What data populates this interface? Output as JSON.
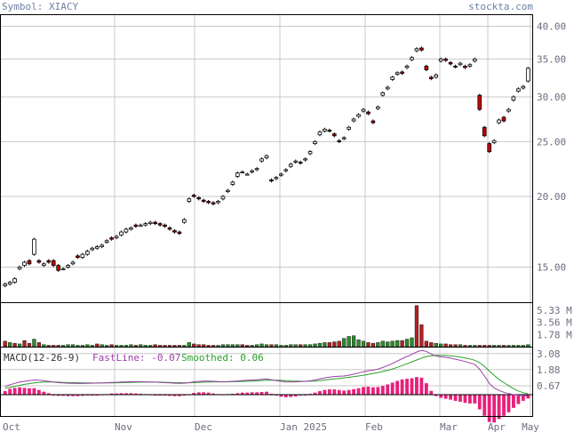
{
  "header": {
    "symbol_text": "Symbol: XIACY",
    "source_text": "stockta.com"
  },
  "colors": {
    "up_candle": "#ffffff",
    "down_candle": "#cc0000",
    "volume_up": "#2e8b2e",
    "volume_down": "#b22222",
    "fastline": "#9b3fa6",
    "smoothed": "#2aa12a",
    "histogram": "#e8207a",
    "grid": "#c8c8c8",
    "axis_text": "#6d6d80"
  },
  "chart_data": [
    {
      "type": "candlestick",
      "title": "Symbol: XIACY",
      "ylim": [
        13,
        42
      ],
      "y_ticks": [
        "40.00",
        "35.00",
        "30.00",
        "25.00",
        "20.00",
        "15.00"
      ],
      "y_scale": "log",
      "x_ticks": [
        "Oct",
        "Nov",
        "Dec",
        "Jan 2025",
        "Feb",
        "Mar",
        "Apr",
        "May"
      ],
      "grid": true,
      "series": [
        {
          "closes": [
            14.0,
            14.1,
            14.3,
            15.0,
            15.3,
            15.2,
            16.8,
            15.3,
            15.2,
            15.3,
            15.1,
            14.8,
            14.9,
            15.1,
            15.3,
            15.6,
            15.8,
            16.0,
            16.2,
            16.3,
            16.4,
            16.7,
            16.8,
            17.0,
            17.3,
            17.5,
            17.6,
            17.7,
            17.8,
            17.9,
            18.0,
            17.9,
            17.8,
            17.7,
            17.5,
            17.3,
            17.2,
            18.2,
            19.8,
            20.0,
            19.8,
            19.6,
            19.5,
            19.4,
            19.6,
            20.0,
            20.5,
            21.2,
            22.0,
            22.1,
            21.9,
            22.2,
            22.4,
            23.3,
            23.6,
            21.3,
            21.6,
            21.9,
            22.3,
            22.8,
            23.1,
            22.9,
            23.3,
            24.0,
            25.0,
            26.0,
            26.3,
            26.1,
            25.6,
            25.0,
            25.4,
            26.5,
            27.4,
            27.9,
            28.5,
            28.0,
            27.0,
            28.8,
            30.5,
            31.2,
            32.5,
            33.1,
            33.0,
            34.0,
            35.2,
            36.5,
            36.3,
            33.5,
            32.3,
            32.8,
            35.0,
            34.8,
            34.3,
            33.9,
            34.4,
            33.8,
            34.2,
            35.0,
            28.5,
            25.6,
            24.0,
            25.1,
            27.3,
            27.2,
            28.5,
            30.0,
            31.0,
            31.3,
            33.7
          ],
          "opens": [
            13.9,
            14.0,
            14.1,
            14.9,
            15.1,
            15.4,
            15.8,
            15.4,
            15.1,
            15.4,
            15.4,
            15.1,
            14.9,
            15.0,
            15.2,
            15.7,
            15.6,
            15.8,
            16.1,
            16.2,
            16.3,
            16.6,
            16.9,
            16.9,
            17.1,
            17.3,
            17.5,
            17.8,
            17.8,
            17.8,
            17.9,
            18.0,
            17.9,
            17.8,
            17.6,
            17.4,
            17.3,
            18.0,
            19.6,
            20.1,
            19.9,
            19.7,
            19.6,
            19.5,
            19.5,
            19.8,
            20.4,
            21.0,
            21.7,
            22.1,
            21.9,
            22.1,
            22.3,
            23.1,
            23.4,
            21.4,
            21.5,
            21.8,
            22.2,
            22.6,
            23.0,
            23.0,
            23.2,
            23.8,
            24.8,
            25.7,
            26.1,
            26.2,
            25.8,
            25.1,
            25.3,
            26.3,
            27.2,
            27.7,
            28.3,
            28.2,
            27.2,
            28.6,
            30.2,
            31.0,
            32.2,
            32.9,
            33.2,
            33.8,
            34.9,
            36.2,
            36.6,
            34.0,
            32.5,
            32.5,
            34.7,
            35.0,
            34.5,
            34.0,
            34.2,
            34.0,
            34.0,
            34.7,
            30.2,
            26.5,
            24.8,
            24.9,
            27.0,
            27.6,
            28.3,
            29.6,
            30.7,
            31.1,
            32.0
          ]
        }
      ]
    },
    {
      "type": "bar",
      "title": "",
      "y_ticks": [
        "5.33 M",
        "3.56 M",
        "1.78 M"
      ],
      "ylim": [
        0,
        6.5
      ],
      "values": [
        0.8,
        0.6,
        0.5,
        0.4,
        0.9,
        0.5,
        1.1,
        0.6,
        0.3,
        0.2,
        0.2,
        0.2,
        0.2,
        0.3,
        0.3,
        0.2,
        0.2,
        0.3,
        0.2,
        0.4,
        0.3,
        0.2,
        0.3,
        0.2,
        0.2,
        0.2,
        0.3,
        0.2,
        0.3,
        0.2,
        0.2,
        0.3,
        0.2,
        0.2,
        0.2,
        0.2,
        0.2,
        0.2,
        0.6,
        0.4,
        0.3,
        0.3,
        0.2,
        0.2,
        0.2,
        0.3,
        0.3,
        0.3,
        0.3,
        0.3,
        0.2,
        0.2,
        0.3,
        0.4,
        0.3,
        0.3,
        0.3,
        0.2,
        0.2,
        0.3,
        0.3,
        0.3,
        0.3,
        0.3,
        0.4,
        0.5,
        0.6,
        0.6,
        0.7,
        0.8,
        1.2,
        1.5,
        1.6,
        1.0,
        0.8,
        0.6,
        0.5,
        0.6,
        0.8,
        0.7,
        0.8,
        0.9,
        0.9,
        1.1,
        1.3,
        6.0,
        3.2,
        0.8,
        0.6,
        0.5,
        0.4,
        0.4,
        0.3,
        0.3,
        0.3,
        0.2,
        0.2,
        0.2,
        0.2,
        0.2,
        0.2,
        0.2,
        0.2,
        0.2,
        0.2,
        0.2,
        0.2,
        0.2,
        0.3
      ],
      "down_flags": [
        1,
        0,
        1,
        0,
        1,
        1,
        0,
        1,
        0,
        1,
        1,
        1,
        0,
        0,
        0,
        0,
        0,
        0,
        0,
        1,
        0,
        0,
        1,
        0,
        0,
        0,
        0,
        1,
        0,
        0,
        0,
        1,
        1,
        1,
        1,
        1,
        1,
        0,
        0,
        1,
        1,
        1,
        1,
        1,
        0,
        0,
        0,
        0,
        0,
        1,
        1,
        0,
        0,
        0,
        0,
        1,
        0,
        0,
        0,
        0,
        0,
        1,
        0,
        0,
        0,
        0,
        0,
        1,
        1,
        1,
        0,
        0,
        0,
        0,
        0,
        1,
        1,
        0,
        0,
        0,
        0,
        0,
        1,
        0,
        0,
        1,
        1,
        1,
        1,
        0,
        0,
        1,
        1,
        1,
        0,
        1,
        0,
        0,
        1,
        1,
        1,
        0,
        0,
        1,
        0,
        0,
        0,
        0,
        0
      ]
    },
    {
      "type": "line",
      "title": "MACD(12-26-9)",
      "fastline_label": "FastLine: -0.07",
      "smoothed_label": "Smoothed: 0.06",
      "y_ticks": [
        "3.08",
        "1.88",
        "0.67"
      ],
      "ylim": [
        -1.6,
        3.6
      ],
      "series": [
        {
          "name": "FastLine",
          "values": [
            0.62,
            0.75,
            0.85,
            0.95,
            1.0,
            1.05,
            1.1,
            1.08,
            1.04,
            1.0,
            0.95,
            0.9,
            0.88,
            0.86,
            0.85,
            0.84,
            0.84,
            0.85,
            0.86,
            0.87,
            0.88,
            0.9,
            0.92,
            0.93,
            0.95,
            0.96,
            0.97,
            0.97,
            0.97,
            0.96,
            0.95,
            0.94,
            0.92,
            0.9,
            0.88,
            0.86,
            0.85,
            0.86,
            0.9,
            0.96,
            1.0,
            1.02,
            1.02,
            1.0,
            0.98,
            0.97,
            0.98,
            1.0,
            1.03,
            1.06,
            1.08,
            1.1,
            1.12,
            1.15,
            1.18,
            1.12,
            1.05,
            1.0,
            0.96,
            0.95,
            0.96,
            0.98,
            1.0,
            1.04,
            1.1,
            1.18,
            1.26,
            1.32,
            1.36,
            1.38,
            1.4,
            1.46,
            1.54,
            1.62,
            1.72,
            1.8,
            1.84,
            1.92,
            2.04,
            2.18,
            2.34,
            2.52,
            2.7,
            2.86,
            3.02,
            3.2,
            3.32,
            3.25,
            3.05,
            2.9,
            2.84,
            2.8,
            2.74,
            2.66,
            2.58,
            2.48,
            2.38,
            2.28,
            1.9,
            1.4,
            0.85,
            0.5,
            0.32,
            0.18,
            0.08,
            0.0,
            -0.04,
            -0.06,
            -0.07
          ]
        },
        {
          "name": "Smoothed",
          "values": [
            0.5,
            0.55,
            0.62,
            0.7,
            0.77,
            0.83,
            0.88,
            0.92,
            0.94,
            0.95,
            0.95,
            0.94,
            0.92,
            0.91,
            0.9,
            0.89,
            0.88,
            0.88,
            0.87,
            0.87,
            0.87,
            0.88,
            0.88,
            0.89,
            0.9,
            0.91,
            0.92,
            0.93,
            0.94,
            0.94,
            0.94,
            0.94,
            0.94,
            0.93,
            0.92,
            0.91,
            0.9,
            0.89,
            0.89,
            0.9,
            0.92,
            0.94,
            0.95,
            0.96,
            0.96,
            0.96,
            0.96,
            0.97,
            0.98,
            0.99,
            1.01,
            1.02,
            1.04,
            1.06,
            1.08,
            1.09,
            1.08,
            1.07,
            1.05,
            1.03,
            1.02,
            1.01,
            1.01,
            1.01,
            1.03,
            1.06,
            1.1,
            1.14,
            1.18,
            1.22,
            1.26,
            1.3,
            1.35,
            1.4,
            1.46,
            1.53,
            1.59,
            1.66,
            1.74,
            1.83,
            1.93,
            2.05,
            2.18,
            2.32,
            2.46,
            2.6,
            2.74,
            2.86,
            2.92,
            2.95,
            2.95,
            2.94,
            2.91,
            2.87,
            2.82,
            2.76,
            2.68,
            2.58,
            2.4,
            2.12,
            1.78,
            1.45,
            1.15,
            0.9,
            0.68,
            0.45,
            0.28,
            0.15,
            0.06
          ]
        }
      ]
    }
  ]
}
